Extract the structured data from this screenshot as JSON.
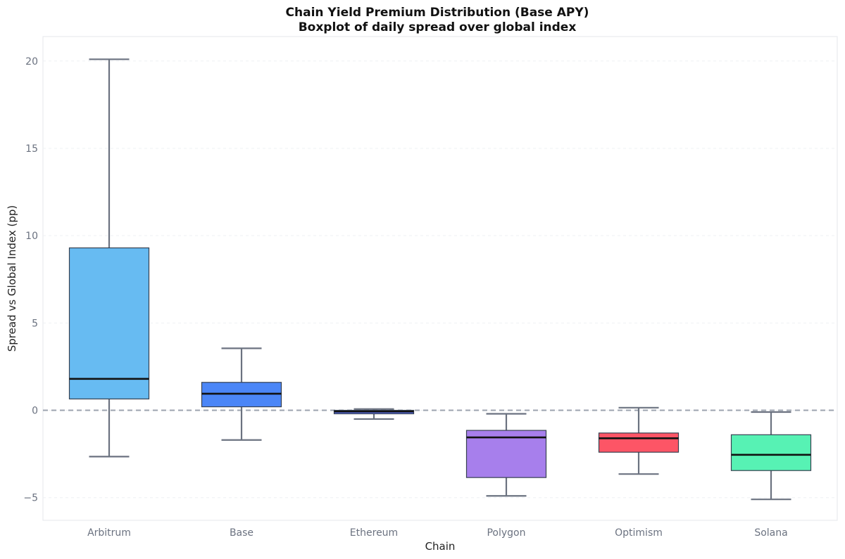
{
  "chart_data": {
    "type": "boxplot",
    "title": "Chain Yield Premium Distribution (Base APY)",
    "subtitle": "Boxplot of daily spread over global index",
    "xlabel": "Chain",
    "ylabel": "Spread vs Global Index (pp)",
    "ylim": [
      -6.3,
      21.4
    ],
    "yticks": [
      -5,
      0,
      5,
      10,
      15,
      20
    ],
    "ytick_labels": [
      "−5",
      "0",
      "5",
      "10",
      "15",
      "20"
    ],
    "grid": "y-dashed",
    "reference_line": 0,
    "categories": [
      "Arbitrum",
      "Base",
      "Ethereum",
      "Polygon",
      "Optimism",
      "Solana"
    ],
    "boxes": [
      {
        "label": "Arbitrum",
        "whisker_low": -2.65,
        "q1": 0.65,
        "median": 1.8,
        "q3": 9.3,
        "whisker_high": 20.1,
        "color": "#67bbf2"
      },
      {
        "label": "Base",
        "whisker_low": -1.7,
        "q1": 0.2,
        "median": 0.95,
        "q3": 1.6,
        "whisker_high": 3.55,
        "color": "#4b86f7"
      },
      {
        "label": "Ethereum",
        "whisker_low": -0.5,
        "q1": -0.2,
        "median": -0.07,
        "q3": 0.0,
        "whisker_high": 0.07,
        "color": "#5b6ee1"
      },
      {
        "label": "Polygon",
        "whisker_low": -4.9,
        "q1": -3.85,
        "median": -1.55,
        "q3": -1.15,
        "whisker_high": -0.2,
        "color": "#a77fec"
      },
      {
        "label": "Optimism",
        "whisker_low": -3.65,
        "q1": -2.4,
        "median": -1.6,
        "q3": -1.3,
        "whisker_high": 0.15,
        "color": "#fd5566"
      },
      {
        "label": "Solana",
        "whisker_low": -5.1,
        "q1": -3.45,
        "median": -2.55,
        "q3": -1.4,
        "whisker_high": -0.1,
        "color": "#57f2b4"
      }
    ],
    "colors": {
      "whisker": "#6b7280",
      "box_edge": "#374151",
      "median": "#111111",
      "reference": "#9ca3af",
      "tick_label": "#6b7280",
      "axis_label": "#222222",
      "frame": "#e5e7eb",
      "grid": "#eef0f3"
    }
  }
}
